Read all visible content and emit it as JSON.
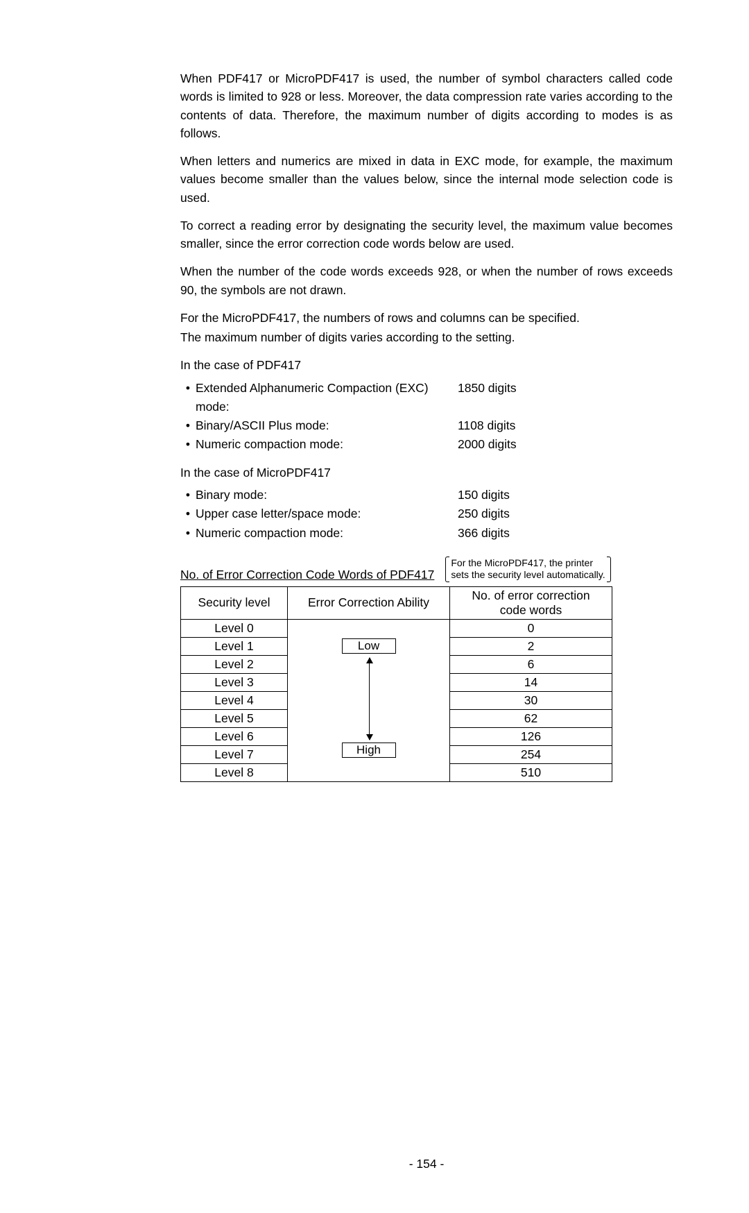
{
  "paragraphs": {
    "p1": "When PDF417 or MicroPDF417 is used, the number of symbol characters called code words is limited to 928 or less.   Moreover, the data compression rate varies according to the contents of data.   Therefore, the maximum number of digits according to modes is as follows.",
    "p2": "When letters and numerics are mixed in data in EXC mode, for example, the maximum values become smaller than the values below, since the internal mode selection code is used.",
    "p3": "To correct a reading error by designating the security level, the maximum value becomes smaller, since the error correction code words below are used.",
    "p4": "When the number of the code words exceeds 928, or when the number of rows exceeds 90, the symbols are not drawn.",
    "p5": "For the MicroPDF417, the numbers of rows and columns can be specified.",
    "p6": "The maximum number of digits varies according to the setting.",
    "pdf417_heading": "In the case of PDF417",
    "micro_heading": "In the case of MicroPDF417"
  },
  "bullet": "•",
  "pdf417_modes": [
    {
      "label": "Extended Alphanumeric Compaction (EXC) mode:",
      "value": "1850 digits"
    },
    {
      "label": "Binary/ASCII Plus mode:",
      "value": "1108 digits"
    },
    {
      "label": "Numeric compaction mode:",
      "value": "2000 digits"
    }
  ],
  "micro_modes": [
    {
      "label": "Binary mode:",
      "value": "150 digits"
    },
    {
      "label": "Upper case letter/space mode:",
      "value": "250 digits"
    },
    {
      "label": "Numeric compaction mode:",
      "value": "366 digits"
    }
  ],
  "table": {
    "caption": "No. of Error Correction Code Words of PDF417",
    "note_l1": "For the MicroPDF417, the printer",
    "note_l2": "sets the security level automatically.",
    "headers": {
      "level": "Security level",
      "eca": "Error Correction Ability",
      "words_l1": "No. of error correction",
      "words_l2": "code words"
    },
    "eca_low": "Low",
    "eca_high": "High",
    "rows": [
      {
        "level": "Level 0",
        "words": "0"
      },
      {
        "level": "Level 1",
        "words": "2"
      },
      {
        "level": "Level 2",
        "words": "6"
      },
      {
        "level": "Level 3",
        "words": "14"
      },
      {
        "level": "Level 4",
        "words": "30"
      },
      {
        "level": "Level 5",
        "words": "62"
      },
      {
        "level": "Level 6",
        "words": "126"
      },
      {
        "level": "Level 7",
        "words": "254"
      },
      {
        "level": "Level 8",
        "words": "510"
      }
    ]
  },
  "footer": "- 154 -"
}
